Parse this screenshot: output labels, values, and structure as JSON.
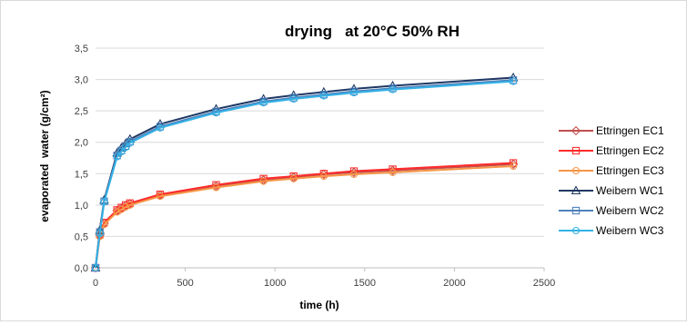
{
  "chart_data": {
    "type": "line",
    "title": "drying   at 20°C 50% RH",
    "xlabel": "time (h)",
    "ylabel": "evaporated  water (g/cm²)",
    "xlim": [
      0,
      2500
    ],
    "ylim": [
      0,
      3.5
    ],
    "xticks": [
      0,
      500,
      1000,
      1500,
      2000,
      2500
    ],
    "yticks": [
      0,
      0.5,
      1.0,
      1.5,
      2.0,
      2.5,
      3.0,
      3.5
    ],
    "xtick_labels": [
      "0",
      "500",
      "1000",
      "1500",
      "2000",
      "2500"
    ],
    "ytick_labels": [
      "0,0",
      "0,5",
      "1,0",
      "1,5",
      "2,0",
      "2,5",
      "3,0",
      "3,5"
    ],
    "grid": "horizontal",
    "legend_position": "right",
    "series": [
      {
        "name": "Ettringen EC1",
        "color": "#c0504d",
        "marker": "diamond",
        "x": [
          0,
          24,
          48,
          120,
          144,
          168,
          192,
          360,
          672,
          936,
          1104,
          1272,
          1440,
          1656,
          2328
        ],
        "y": [
          0,
          0.52,
          0.71,
          0.91,
          0.95,
          0.99,
          1.02,
          1.16,
          1.3,
          1.4,
          1.44,
          1.49,
          1.52,
          1.55,
          1.65
        ]
      },
      {
        "name": "Ettringen EC2",
        "color": "#ff2b2b",
        "marker": "square",
        "x": [
          0,
          24,
          48,
          120,
          144,
          168,
          192,
          360,
          672,
          936,
          1104,
          1272,
          1440,
          1656,
          2328
        ],
        "y": [
          0,
          0.53,
          0.72,
          0.92,
          0.96,
          1.0,
          1.03,
          1.17,
          1.32,
          1.42,
          1.46,
          1.5,
          1.54,
          1.57,
          1.67
        ]
      },
      {
        "name": "Ettringen EC3",
        "color": "#f79646",
        "marker": "circle",
        "x": [
          0,
          24,
          48,
          120,
          144,
          168,
          192,
          360,
          672,
          936,
          1104,
          1272,
          1440,
          1656,
          2328
        ],
        "y": [
          0,
          0.5,
          0.69,
          0.89,
          0.93,
          0.97,
          1.0,
          1.14,
          1.28,
          1.38,
          1.42,
          1.46,
          1.49,
          1.52,
          1.62
        ]
      },
      {
        "name": "Weibern WC1",
        "color": "#1f3864",
        "marker": "triangle",
        "x": [
          0,
          24,
          48,
          120,
          144,
          168,
          192,
          360,
          672,
          936,
          1104,
          1272,
          1440,
          1656,
          2328
        ],
        "y": [
          0,
          0.6,
          1.08,
          1.83,
          1.91,
          1.98,
          2.05,
          2.29,
          2.53,
          2.69,
          2.75,
          2.8,
          2.85,
          2.9,
          3.03
        ]
      },
      {
        "name": "Weibern WC2",
        "color": "#4f81bd",
        "marker": "square",
        "x": [
          0,
          24,
          48,
          120,
          144,
          168,
          192,
          360,
          672,
          936,
          1104,
          1272,
          1440,
          1656,
          2328
        ],
        "y": [
          0,
          0.57,
          1.06,
          1.79,
          1.87,
          1.94,
          2.01,
          2.25,
          2.49,
          2.65,
          2.71,
          2.76,
          2.81,
          2.86,
          2.99
        ]
      },
      {
        "name": "Weibern WC3",
        "color": "#33b2e6",
        "marker": "circle",
        "x": [
          0,
          24,
          48,
          120,
          144,
          168,
          192,
          360,
          672,
          936,
          1104,
          1272,
          1440,
          1656,
          2328
        ],
        "y": [
          0,
          0.55,
          1.05,
          1.77,
          1.85,
          1.92,
          1.99,
          2.23,
          2.47,
          2.63,
          2.69,
          2.74,
          2.79,
          2.84,
          2.97
        ]
      }
    ]
  }
}
